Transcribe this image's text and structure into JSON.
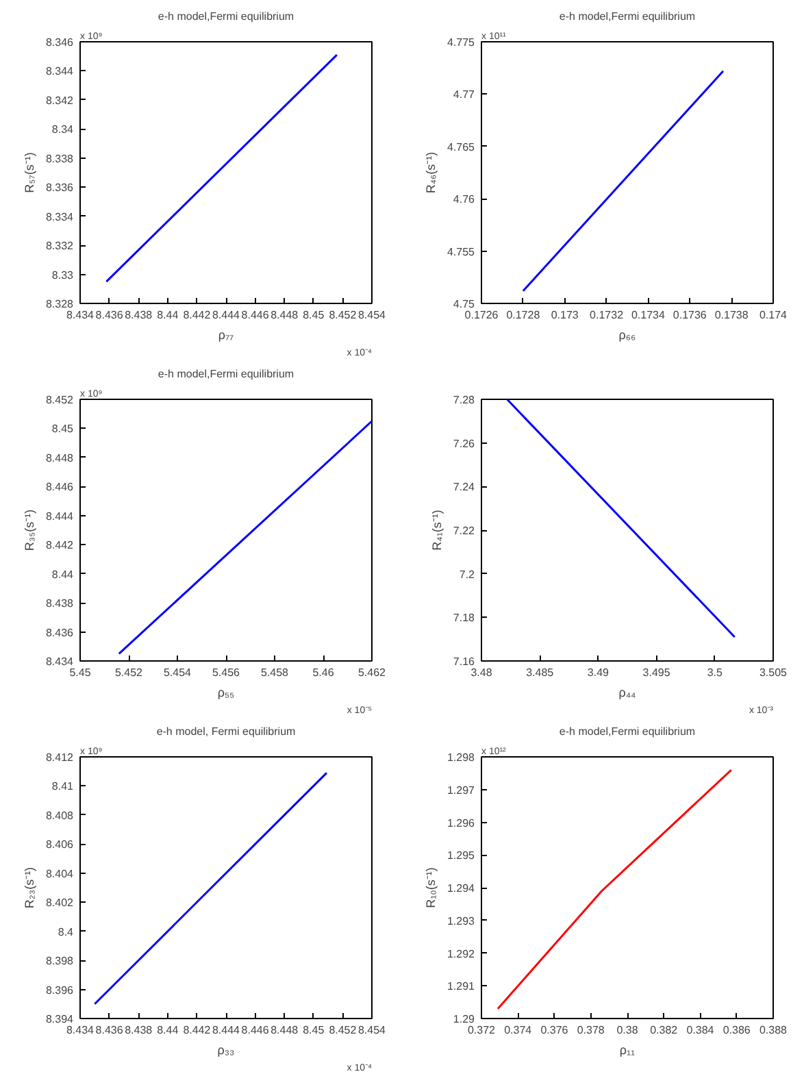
{
  "chart_data": [
    {
      "type": "line",
      "title": "e-h model,Fermi equilibrium",
      "xlabel": "ρ₇₇",
      "ylabel": "R₅₇(s⁻¹)",
      "annotations": [
        "x 10⁹",
        "x 10⁻⁴"
      ],
      "x": [
        8.4358,
        8.4516
      ],
      "series": [
        {
          "color": "#0000ff",
          "values": [
            8.3295,
            8.3451
          ]
        }
      ],
      "xlim": [
        8.434,
        8.454
      ],
      "xticks": [
        8.434,
        8.436,
        8.438,
        8.44,
        8.442,
        8.444,
        8.446,
        8.448,
        8.45,
        8.452,
        8.454
      ],
      "ylim": [
        8.328,
        8.346
      ],
      "yticks": [
        8.328,
        8.33,
        8.332,
        8.334,
        8.336,
        8.338,
        8.34,
        8.342,
        8.344,
        8.346
      ],
      "grid": false
    },
    {
      "type": "line",
      "title": "e-h model,Fermi equilibrium",
      "xlabel": "ρ₆₆",
      "ylabel": "R₄₆(s⁻¹)",
      "annotations": [
        "x 10¹¹"
      ],
      "x": [
        0.1728,
        0.17376
      ],
      "series": [
        {
          "color": "#0000ff",
          "values": [
            4.7512,
            4.7722
          ]
        }
      ],
      "xlim": [
        0.1726,
        0.174
      ],
      "xticks": [
        0.1726,
        0.1728,
        0.173,
        0.1732,
        0.1734,
        0.1736,
        0.1738,
        0.174
      ],
      "ylim": [
        4.75,
        4.775
      ],
      "yticks": [
        4.75,
        4.755,
        4.76,
        4.765,
        4.77,
        4.775
      ],
      "grid": false
    },
    {
      "type": "line",
      "title": "e-h model,Fermi equilibrium",
      "xlabel": "ρ₅₅",
      "ylabel": "R₃₅(s⁻¹)",
      "annotations": [
        "x 10⁹",
        "x 10⁻⁵"
      ],
      "x": [
        5.4516,
        5.462
      ],
      "series": [
        {
          "color": "#0000ff",
          "values": [
            8.4345,
            8.4505
          ]
        }
      ],
      "xlim": [
        5.45,
        5.462
      ],
      "xticks": [
        5.45,
        5.452,
        5.454,
        5.456,
        5.458,
        5.46,
        5.462
      ],
      "ylim": [
        8.434,
        8.452
      ],
      "yticks": [
        8.434,
        8.436,
        8.438,
        8.44,
        8.442,
        8.444,
        8.446,
        8.448,
        8.45,
        8.452
      ],
      "grid": false
    },
    {
      "type": "line",
      "xlabel": "ρ₄₄",
      "ylabel": "R₄₁(s⁻¹)",
      "annotations": [
        "x 10⁻³"
      ],
      "x": [
        3.4822,
        3.5017
      ],
      "series": [
        {
          "color": "#0000ff",
          "values": [
            7.28,
            7.171
          ]
        }
      ],
      "xlim": [
        3.48,
        3.505
      ],
      "xticks": [
        3.48,
        3.485,
        3.49,
        3.495,
        3.5,
        3.505
      ],
      "ylim": [
        7.16,
        7.28
      ],
      "yticks": [
        7.16,
        7.18,
        7.2,
        7.22,
        7.24,
        7.26,
        7.28
      ],
      "grid": false
    },
    {
      "type": "line",
      "title": "e-h model, Fermi equilibrium",
      "xlabel": "ρ₃₃",
      "ylabel": "R₂₃(s⁻¹)",
      "annotations": [
        "x 10⁹",
        "x 10⁻⁴"
      ],
      "x": [
        8.435,
        8.4509
      ],
      "series": [
        {
          "color": "#0000ff",
          "values": [
            8.395,
            8.4109
          ]
        }
      ],
      "xlim": [
        8.434,
        8.454
      ],
      "xticks": [
        8.434,
        8.436,
        8.438,
        8.44,
        8.442,
        8.444,
        8.446,
        8.448,
        8.45,
        8.452,
        8.454
      ],
      "ylim": [
        8.394,
        8.412
      ],
      "yticks": [
        8.394,
        8.396,
        8.398,
        8.4,
        8.402,
        8.404,
        8.406,
        8.408,
        8.41,
        8.412
      ],
      "grid": false
    },
    {
      "type": "line",
      "title": "e-h model,Fermi equilibrium",
      "xlabel": "ρ₁₁",
      "ylabel": "R₁₀(s⁻¹)",
      "annotations": [
        "x 10¹²"
      ],
      "x": [
        0.3729,
        0.3786,
        0.3857
      ],
      "series": [
        {
          "color": "#ff0000",
          "values": [
            1.2903,
            1.2939,
            1.2976
          ]
        }
      ],
      "xlim": [
        0.372,
        0.388
      ],
      "xticks": [
        0.372,
        0.374,
        0.376,
        0.378,
        0.38,
        0.382,
        0.384,
        0.386,
        0.388
      ],
      "ylim": [
        1.29,
        1.298
      ],
      "yticks": [
        1.29,
        1.291,
        1.292,
        1.293,
        1.294,
        1.295,
        1.296,
        1.297,
        1.298
      ],
      "grid": false
    }
  ]
}
